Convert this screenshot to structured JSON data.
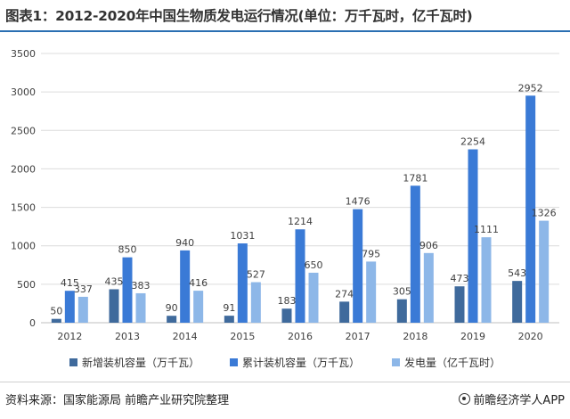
{
  "title": "图表1：2012-2020年中国生物质发电运行情况(单位：万千瓦时，亿千瓦时)",
  "source": "资料来源：国家能源局 前瞻产业研究院整理",
  "brand": "前瞻经济学人APP",
  "colors": {
    "series": [
      "#3f6a9c",
      "#3a7ad6",
      "#8db7e8"
    ],
    "axis": "#bfbfbf",
    "grid": "#dcdcdc",
    "text": "#404040",
    "title_rule": "#2a6fb2"
  },
  "chart_data": {
    "type": "bar",
    "categories": [
      "2012",
      "2013",
      "2014",
      "2015",
      "2016",
      "2017",
      "2018",
      "2019",
      "2020"
    ],
    "series": [
      {
        "name": "新增装机容量（万千瓦）",
        "values": [
          50,
          435,
          90,
          91,
          183,
          274,
          305,
          473,
          543
        ]
      },
      {
        "name": "累计装机容量（万千瓦）",
        "values": [
          415,
          850,
          940,
          1031,
          1214,
          1476,
          1781,
          2254,
          2952
        ]
      },
      {
        "name": "发电量（亿千瓦时）",
        "values": [
          337,
          383,
          416,
          527,
          650,
          795,
          906,
          1111,
          1326
        ]
      }
    ],
    "ylim": [
      0,
      3500
    ],
    "yticks": [
      0,
      500,
      1000,
      1500,
      2000,
      2500,
      3000,
      3500
    ],
    "grid": true,
    "legend": "bottom",
    "data_labels": true
  }
}
